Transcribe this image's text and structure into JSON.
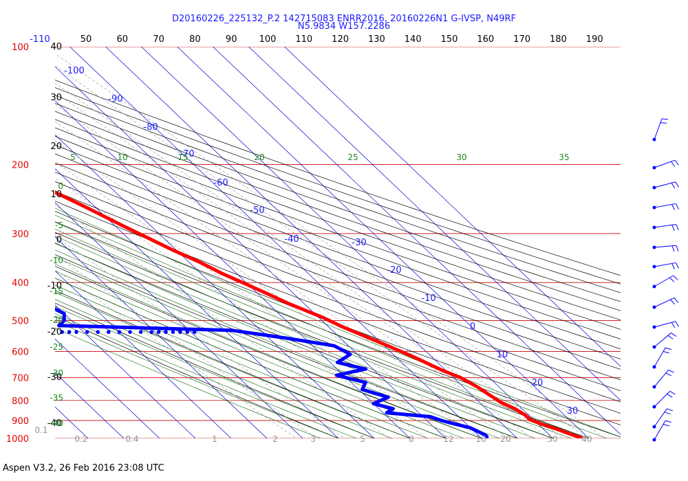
{
  "chart_data": {
    "type": "skew-t",
    "title_line1": "D20160226_225132_P.2 142715083 ENRR2016, 20160226N1 G-IVSP, N49RF",
    "title_line2": "N5.9834 W157.2286",
    "footer": "Aspen V3.2, 26 Feb 2016  23:08 UTC",
    "pressure_labels": [
      {
        "p": 100,
        "label": "100"
      },
      {
        "p": 200,
        "label": "200"
      },
      {
        "p": 300,
        "label": "300"
      },
      {
        "p": 400,
        "label": "400"
      },
      {
        "p": 500,
        "label": "500"
      },
      {
        "p": 600,
        "label": "600"
      },
      {
        "p": 700,
        "label": "700"
      },
      {
        "p": 800,
        "label": "800"
      },
      {
        "p": 900,
        "label": "900"
      },
      {
        "p": 1000,
        "label": "1000"
      }
    ],
    "height_labels": [
      "40",
      "30",
      "20",
      "10",
      "0",
      "-10",
      "-20",
      "-30",
      "-40"
    ],
    "top_labels": [
      "-110",
      "50",
      "60",
      "70",
      "80",
      "90",
      "100",
      "110",
      "120",
      "130",
      "140",
      "150",
      "160",
      "170",
      "180",
      "190"
    ],
    "temp_labels": [
      "-100",
      "-90",
      "-80",
      "-70",
      "-60",
      "-50",
      "-40",
      "-30",
      "-20",
      "-10",
      "0",
      "10",
      "20",
      "30"
    ],
    "theta_e_labels": [
      "5",
      "10",
      "15",
      "20",
      "25",
      "30",
      "35"
    ],
    "adiabat_left_labels": [
      "0",
      "-5",
      "-10",
      "-15",
      "-20",
      "-25",
      "-30",
      "-35",
      "-40"
    ],
    "mixing_labels": [
      "0.1",
      "0.2",
      "0.4",
      "1",
      "2",
      "3",
      "5",
      "8",
      "12",
      "16",
      "20",
      "30",
      "40"
    ],
    "temperature": {
      "name": "",
      "color": "#ff0000",
      "p": [
        191,
        205,
        230,
        255,
        285,
        310,
        330,
        355,
        380,
        400,
        430,
        455,
        490,
        520,
        545,
        580,
        620,
        670,
        700,
        740,
        775,
        810,
        840,
        870,
        895,
        920,
        950,
        975,
        995
      ],
      "t": [
        -56,
        -53,
        -48,
        -43,
        -38,
        -34,
        -31,
        -27,
        -24,
        -21,
        -17,
        -14,
        -9,
        -6,
        -3,
        1,
        5,
        9,
        12,
        14,
        15,
        16,
        18,
        19,
        19,
        21,
        24,
        26,
        28
      ]
    },
    "dewpoint": {
      "name": "",
      "color": "#0000ff",
      "p": [
        220,
        240,
        265,
        275,
        285,
        300,
        310,
        325,
        340,
        360,
        380,
        420,
        460,
        480,
        500,
        515,
        530,
        555,
        580,
        610,
        640,
        665,
        690,
        720,
        750,
        785,
        815,
        840,
        860,
        880,
        900,
        920,
        940,
        960,
        980,
        990
      ],
      "t": [
        -62,
        -60,
        -63,
        -68,
        -70,
        -64,
        -64,
        -70,
        -72,
        -75,
        -85,
        -83,
        -82,
        -80,
        -82,
        -85,
        -38,
        -25,
        -14,
        -12,
        -18,
        -12,
        -22,
        -16,
        -19,
        -14,
        -20,
        -16,
        -19,
        -8,
        -6,
        -3,
        0,
        1,
        2,
        2
      ]
    },
    "dewpoint_ledge": {
      "p": 535,
      "t": [
        -86,
        -84,
        -82,
        -79,
        -76,
        -73,
        -70,
        -67,
        -64,
        -61,
        -59,
        -57,
        -55,
        -53,
        -51,
        -49
      ]
    },
    "colors": {
      "isobar": "#cc0000",
      "isotherm": "#0000cc",
      "dry_adiabat": "#000000",
      "moist_adiabat": "#006600",
      "mixing_ratio": "#909090"
    }
  }
}
